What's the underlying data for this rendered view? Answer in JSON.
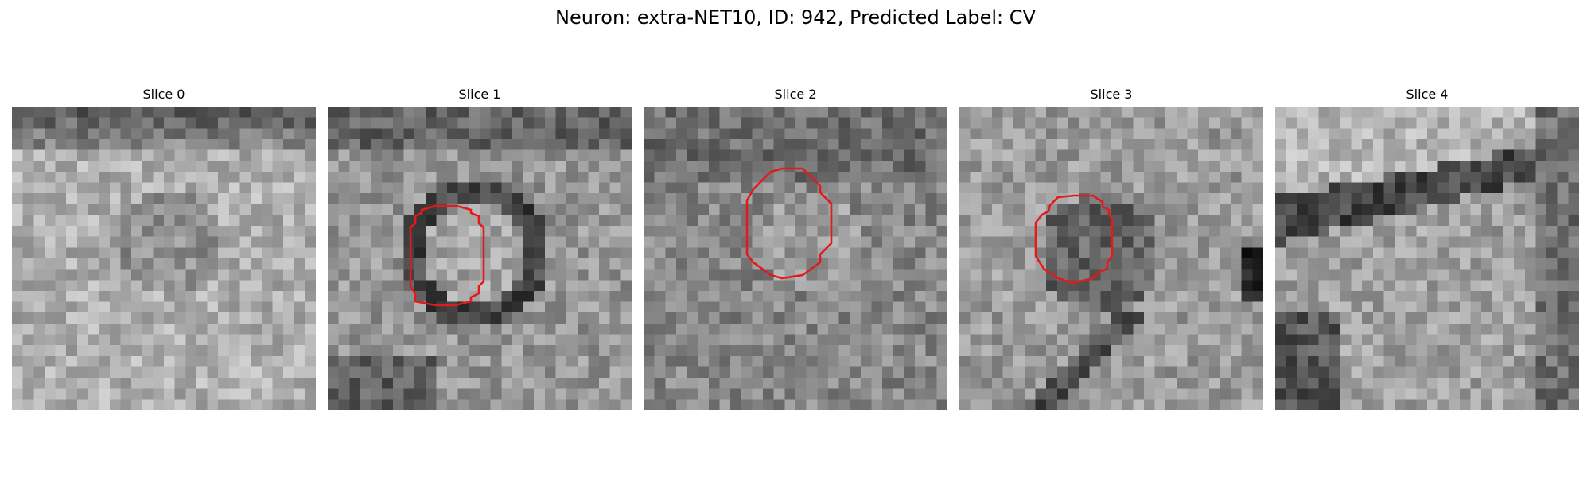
{
  "figure": {
    "title": "Neuron: extra-NET10, ID: 942, Predicted Label: CV",
    "contour_color": "#e31a1c"
  },
  "panels": [
    {
      "title": "Slice 0",
      "has_contour": false
    },
    {
      "title": "Slice 1",
      "has_contour": true
    },
    {
      "title": "Slice 2",
      "has_contour": true
    },
    {
      "title": "Slice 3",
      "has_contour": true
    },
    {
      "title": "Slice 4",
      "has_contour": false
    }
  ]
}
